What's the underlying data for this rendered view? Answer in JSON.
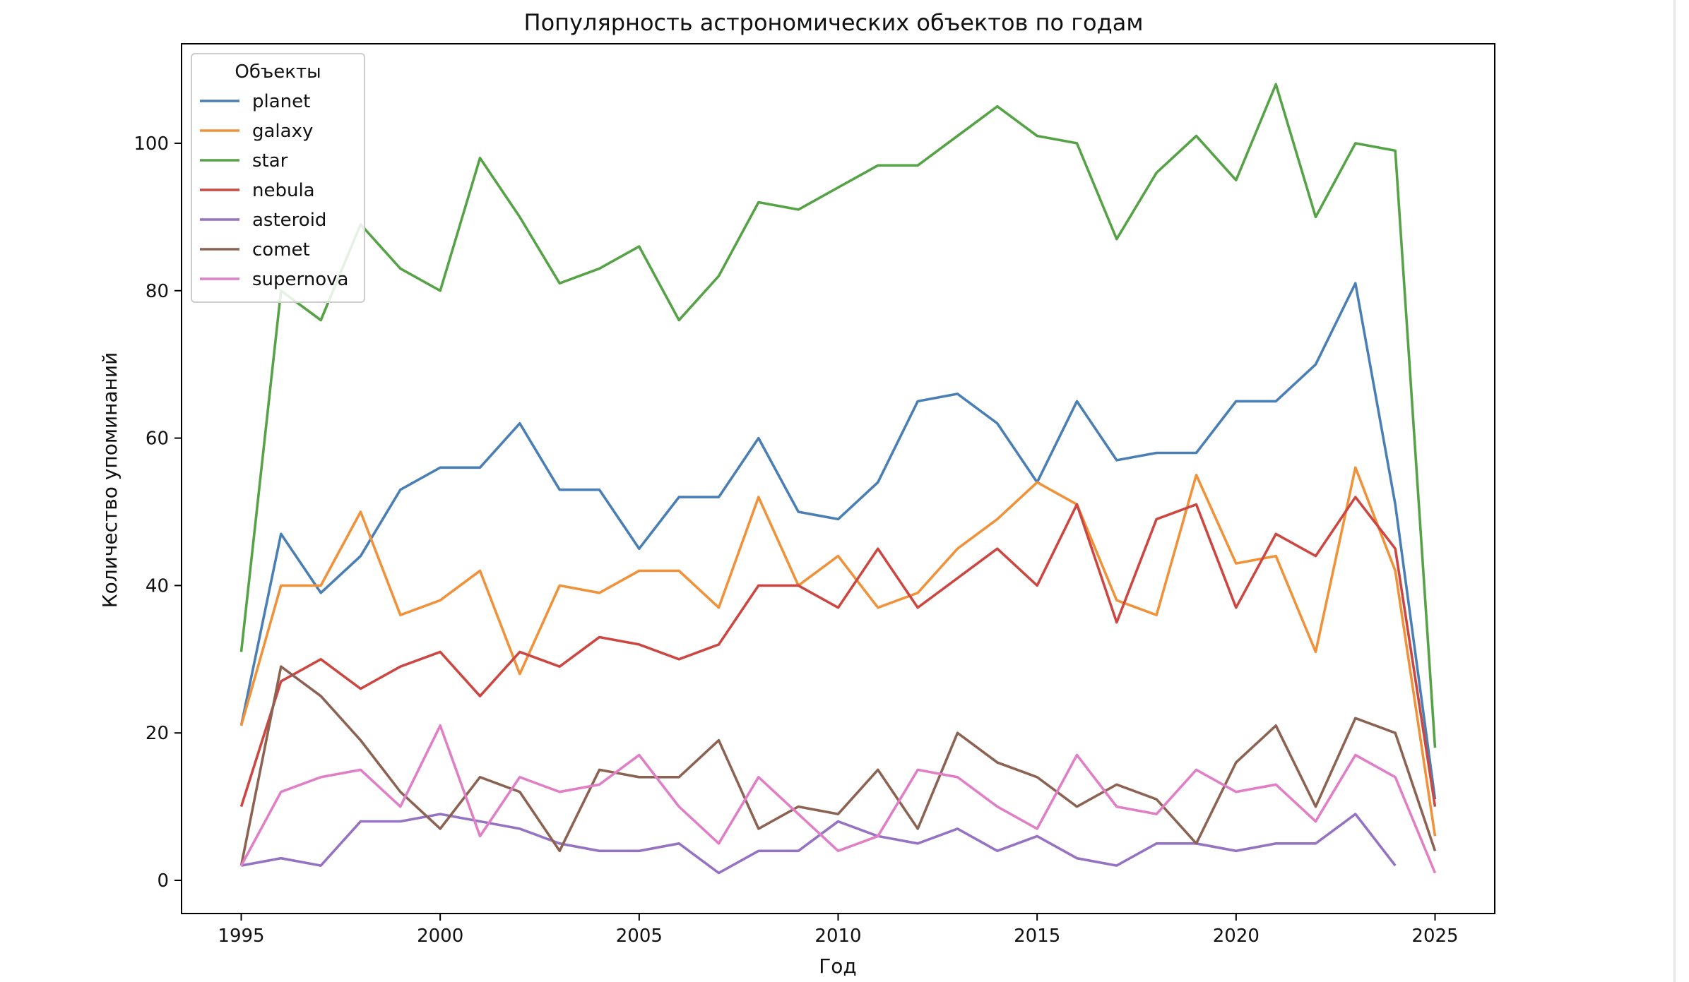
{
  "chart_data": {
    "type": "line",
    "title": "Популярность астрономических объектов по годам",
    "xlabel": "Год",
    "ylabel": "Количество упоминаний",
    "xlim": [
      1993.5,
      2026.5
    ],
    "ylim": [
      -4.5,
      113.5
    ],
    "xticks": [
      1995,
      2000,
      2005,
      2010,
      2015,
      2020,
      2025
    ],
    "yticks": [
      0,
      20,
      40,
      60,
      80,
      100
    ],
    "grid": false,
    "legend": {
      "title": "Объекты",
      "position": "top-left"
    },
    "x": [
      1995,
      1996,
      1997,
      1998,
      1999,
      2000,
      2001,
      2002,
      2003,
      2004,
      2005,
      2006,
      2007,
      2008,
      2009,
      2010,
      2011,
      2012,
      2013,
      2014,
      2015,
      2016,
      2017,
      2018,
      2019,
      2020,
      2021,
      2022,
      2023,
      2024,
      2025
    ],
    "series": [
      {
        "name": "planet",
        "color": "#4a7fb5",
        "values": [
          21,
          47,
          39,
          44,
          53,
          56,
          56,
          62,
          53,
          53,
          45,
          52,
          52,
          60,
          50,
          49,
          54,
          65,
          66,
          62,
          54,
          65,
          57,
          58,
          58,
          65,
          65,
          70,
          81,
          51,
          11
        ]
      },
      {
        "name": "galaxy",
        "color": "#f0923a",
        "values": [
          21,
          40,
          40,
          50,
          36,
          38,
          42,
          28,
          40,
          39,
          42,
          42,
          37,
          52,
          40,
          44,
          37,
          39,
          45,
          49,
          54,
          51,
          38,
          36,
          55,
          43,
          44,
          31,
          56,
          42,
          6
        ]
      },
      {
        "name": "star",
        "color": "#55a346",
        "values": [
          31,
          80,
          76,
          89,
          83,
          80,
          98,
          90,
          81,
          83,
          86,
          76,
          82,
          92,
          91,
          94,
          97,
          97,
          101,
          105,
          101,
          100,
          87,
          96,
          101,
          95,
          108,
          90,
          100,
          99,
          18
        ]
      },
      {
        "name": "nebula",
        "color": "#cc4742",
        "values": [
          10,
          27,
          30,
          26,
          29,
          31,
          25,
          31,
          29,
          33,
          32,
          30,
          32,
          40,
          40,
          37,
          45,
          37,
          41,
          45,
          40,
          51,
          35,
          49,
          51,
          37,
          47,
          44,
          52,
          45,
          10
        ]
      },
      {
        "name": "asteroid",
        "color": "#9673c2",
        "values": [
          2,
          3,
          2,
          8,
          8,
          9,
          8,
          7,
          5,
          4,
          4,
          5,
          1,
          4,
          4,
          8,
          6,
          5,
          7,
          4,
          6,
          3,
          2,
          5,
          5,
          4,
          5,
          5,
          9,
          2,
          null
        ]
      },
      {
        "name": "comet",
        "color": "#8c6353",
        "values": [
          2,
          29,
          25,
          19,
          12,
          7,
          14,
          12,
          4,
          15,
          14,
          14,
          19,
          7,
          10,
          9,
          15,
          7,
          20,
          16,
          14,
          10,
          13,
          11,
          5,
          16,
          21,
          10,
          22,
          20,
          4
        ]
      },
      {
        "name": "supernova",
        "color": "#e07fc6",
        "values": [
          2,
          12,
          14,
          15,
          10,
          21,
          6,
          14,
          12,
          13,
          17,
          10,
          5,
          14,
          9,
          4,
          6,
          15,
          14,
          10,
          7,
          17,
          10,
          9,
          15,
          12,
          13,
          8,
          17,
          14,
          1
        ]
      }
    ]
  }
}
